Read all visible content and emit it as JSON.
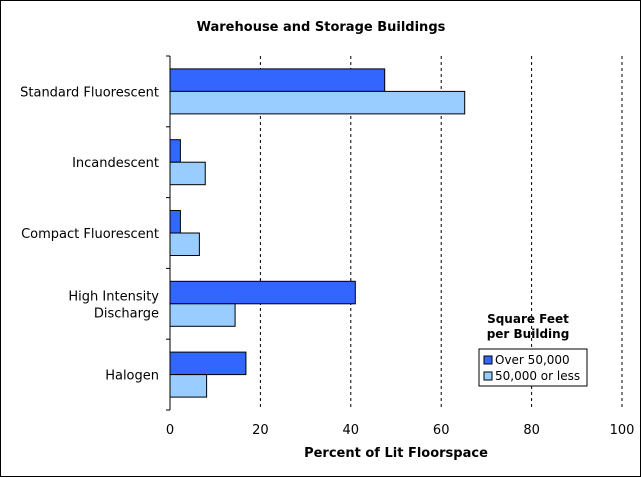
{
  "chart_data": {
    "type": "bar",
    "orientation": "horizontal",
    "title": "Warehouse and Storage Buildings",
    "xlabel": "Percent of Lit Floorspace",
    "ylabel": "",
    "xlim": [
      0,
      100
    ],
    "xticks": [
      "0",
      "20",
      "40",
      "60",
      "80",
      "100"
    ],
    "grid": "vertical dashed",
    "categories": [
      [
        "Standard Fluorescent"
      ],
      [
        "Incandescent"
      ],
      [
        "Compact Fluorescent"
      ],
      [
        "High Intensity",
        "Discharge"
      ],
      [
        "Halogen"
      ]
    ],
    "series": [
      {
        "name": "Over 50,000",
        "color": "#3366ff",
        "values": [
          47.5,
          2.3,
          2.3,
          41.0,
          16.8
        ]
      },
      {
        "name": "50,000 or less",
        "color": "#99ccff",
        "values": [
          65.2,
          7.8,
          6.5,
          14.4,
          8.1
        ]
      }
    ],
    "legend": {
      "title_lines": [
        "Square Feet",
        "per Building"
      ],
      "placement": "lower-right"
    }
  }
}
